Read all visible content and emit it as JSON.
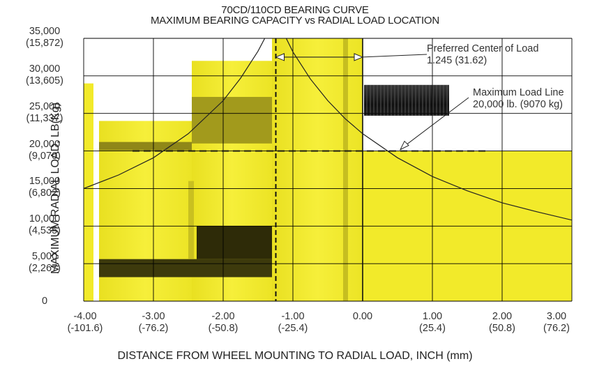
{
  "chart_data": {
    "type": "line",
    "title": "70CD/110CD BEARING CURVE",
    "subtitle": "MAXIMUM BEARING CAPACITY vs RADIAL LOAD LOCATION",
    "xlabel": "DISTANCE FROM WHEEL MOUNTING TO RADIAL LOAD, INCH (mm)",
    "ylabel": "MAXIMUM RADIAL LOAD, LB(Kg)",
    "xlim": [
      -4,
      3
    ],
    "ylim": [
      0,
      35000
    ],
    "grid": true,
    "x_ticks": [
      {
        "value": -4,
        "label": "-4.00",
        "sub": "(-101.6)"
      },
      {
        "value": -3,
        "label": "-3.00",
        "sub": "(-76.2)"
      },
      {
        "value": -2,
        "label": "-2.00",
        "sub": "(-50.8)"
      },
      {
        "value": -1,
        "label": "-1.00",
        "sub": "(-25.4)"
      },
      {
        "value": 0,
        "label": "0.00",
        "sub": ""
      },
      {
        "value": 1,
        "label": "1.00",
        "sub": "(25.4)"
      },
      {
        "value": 2,
        "label": "2.00",
        "sub": "(50.8)"
      },
      {
        "value": 3,
        "label": "3.00",
        "sub": "(76.2)"
      }
    ],
    "y_ticks": [
      {
        "value": 0,
        "label": "0",
        "sub": ""
      },
      {
        "value": 5000,
        "label": "5,000",
        "sub": "(2,267)"
      },
      {
        "value": 10000,
        "label": "10,000",
        "sub": "(4,535)"
      },
      {
        "value": 15000,
        "label": "15,000",
        "sub": "(6,802)"
      },
      {
        "value": 20000,
        "label": "20,000",
        "sub": "(9,070)"
      },
      {
        "value": 25000,
        "label": "25,000",
        "sub": "(11,337)"
      },
      {
        "value": 30000,
        "label": "30,000",
        "sub": "(13,605)"
      },
      {
        "value": 35000,
        "label": "35,000",
        "sub": "(15,872)"
      }
    ],
    "series": [
      {
        "color": "#222222",
        "x": [
          -4.0,
          -3.5,
          -3.0,
          -2.5,
          -2.0,
          -1.75,
          -1.5,
          -1.245,
          -1.0,
          -0.75,
          -0.5,
          -0.25,
          0.0,
          0.5,
          1.0,
          1.5,
          2.0,
          2.5,
          3.0
        ],
        "y": [
          15000,
          16800,
          19100,
          22300,
          26700,
          29700,
          33300,
          37800,
          33200,
          29600,
          26700,
          24300,
          22300,
          19100,
          16600,
          14700,
          13100,
          11900,
          10800
        ]
      }
    ],
    "reference_lines": [
      {
        "type": "vertical",
        "x": -1.245,
        "style": "dashed"
      },
      {
        "type": "vertical",
        "x": 0,
        "style": "solid"
      },
      {
        "type": "horizontal",
        "y": 20000,
        "x_range": [
          -3.3,
          1.8
        ],
        "style": "dashed"
      }
    ],
    "annotations": [
      {
        "text": "Preferred Center of Load",
        "text2": "1.245 (31.62)",
        "arrow_between_x": [
          -1.245,
          0
        ],
        "arrow_y": 32500
      },
      {
        "text": "Maximum Load Line",
        "text2": "20,000 lb. (9070 kg)",
        "points_to": [
          0.5,
          20000
        ]
      }
    ],
    "background_image": "wheel-hub-cross-section",
    "colors": {
      "hub": "#f2ea2a",
      "hub_shadow": "#3d3a0c",
      "bolt": "#1c1c1c",
      "grid": "#000000"
    }
  }
}
